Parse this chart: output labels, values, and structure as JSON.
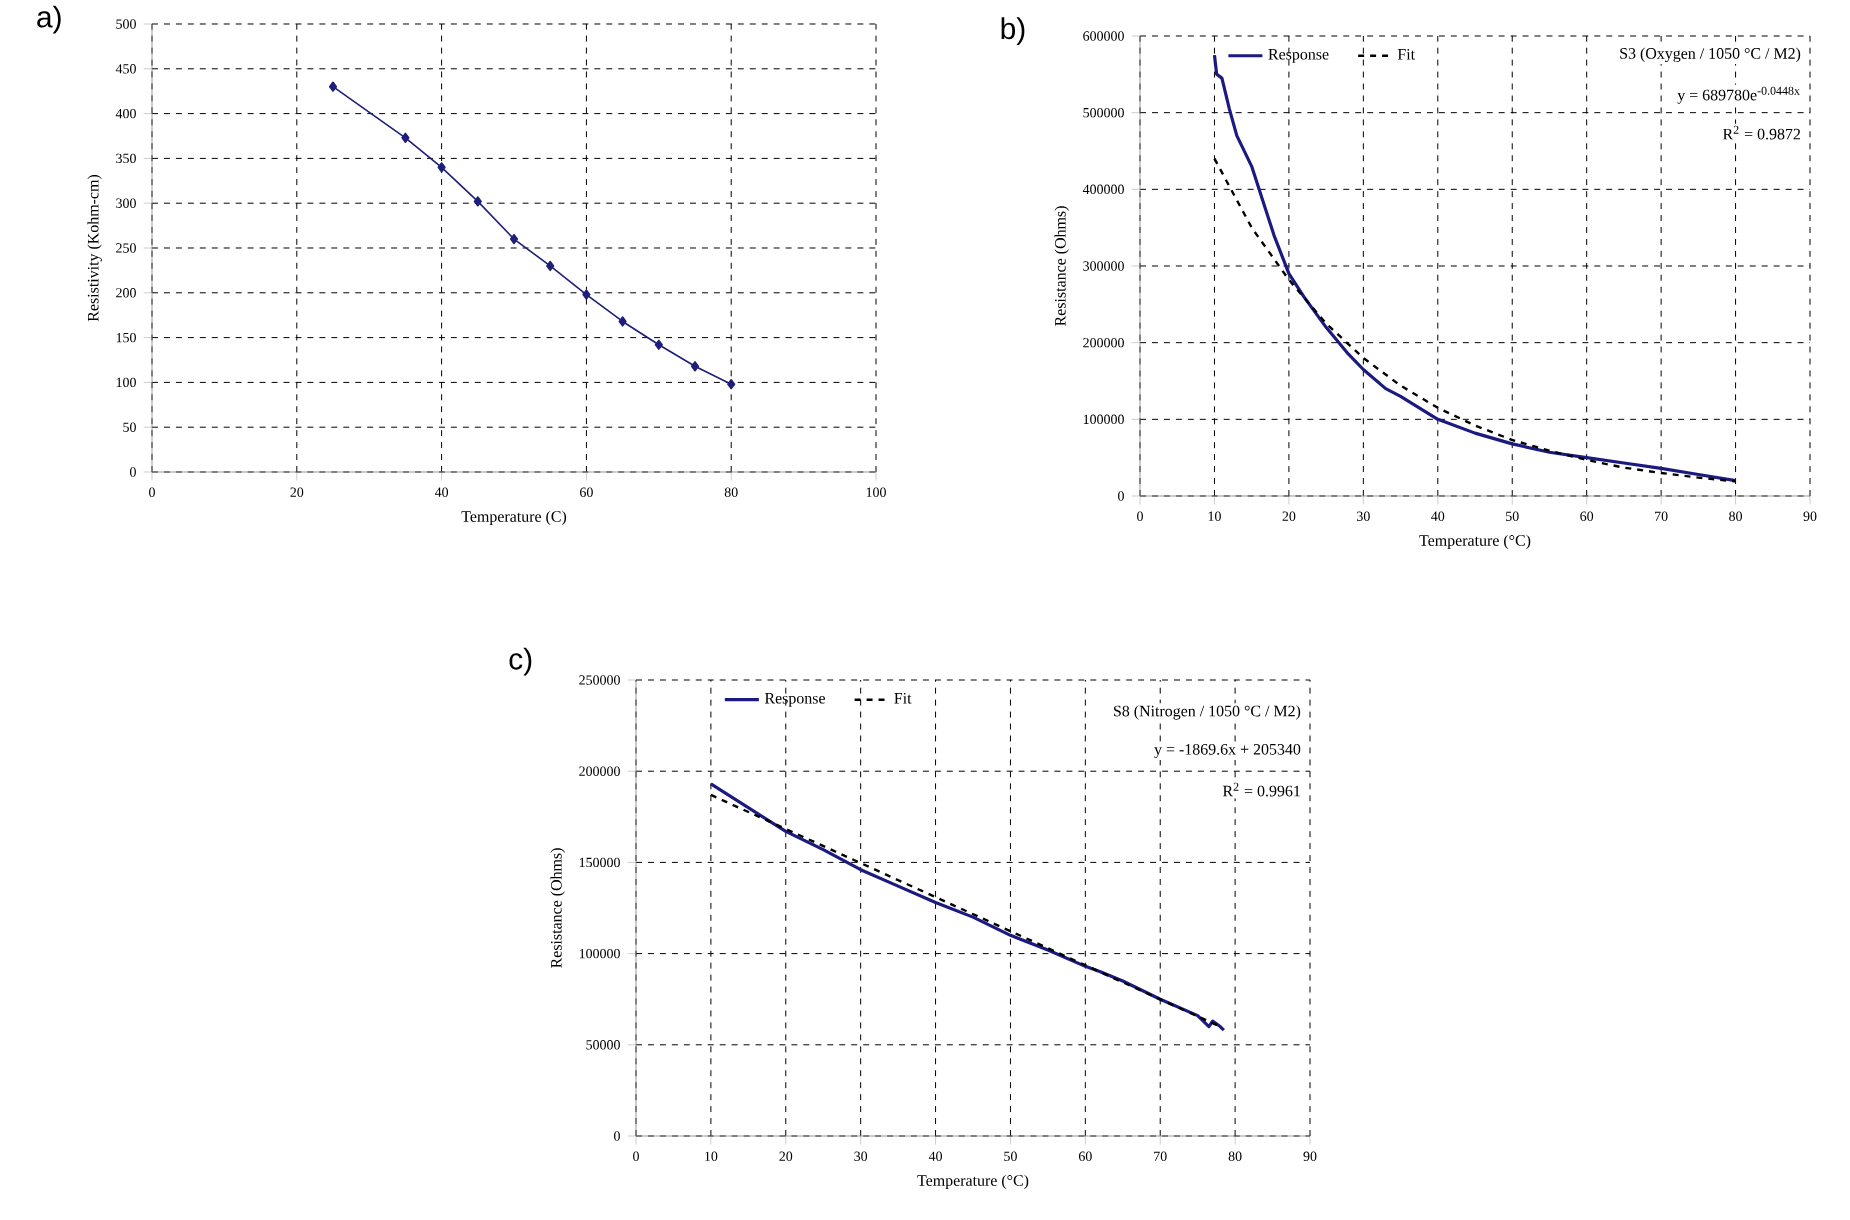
{
  "chart_data": [
    {
      "type": "line",
      "title": "a)",
      "xlabel": "Temperature  (C)",
      "ylabel": "Resistivity (Kohm-cm)",
      "x": [
        25,
        35,
        40,
        45,
        50,
        55,
        60,
        65,
        70,
        75,
        80
      ],
      "values": [
        430,
        373,
        340,
        302,
        260,
        230,
        198,
        168,
        142,
        118,
        98
      ],
      "color": "#1f1f7a",
      "marker": "diamond",
      "grid": true,
      "xlim": [
        0,
        100
      ],
      "xticks": [
        0,
        20,
        40,
        60,
        80,
        100
      ],
      "ylim": [
        0,
        500
      ],
      "yticks": [
        0,
        50,
        100,
        150,
        200,
        250,
        300,
        350,
        400,
        450,
        500
      ]
    },
    {
      "type": "line",
      "title": "b)",
      "xlabel": "Temperature (°C)",
      "ylabel": "Resistance (Ohms)",
      "legend": "top left",
      "grid": true,
      "xlim": [
        0,
        90
      ],
      "xticks": [
        0,
        10,
        20,
        30,
        40,
        50,
        60,
        70,
        80,
        90
      ],
      "ylim": [
        0,
        600000
      ],
      "yticks": [
        0,
        100000,
        200000,
        300000,
        400000,
        500000,
        600000
      ],
      "annotations": [
        "S3 (Oxygen / 1050 °C / M2)",
        "y = 689780e$^{-0.0448x}$",
        "R$^{2}$ = 0.9872"
      ],
      "series": [
        {
          "name": "Response",
          "color": "#1a1a80",
          "x": [
            10,
            10.3,
            11,
            12,
            13,
            15,
            16,
            18,
            20,
            22,
            25,
            28,
            30,
            33,
            35,
            40,
            45,
            50,
            55,
            60,
            65,
            70,
            75,
            80
          ],
          "values": [
            575000,
            550000,
            545000,
            505000,
            470000,
            430000,
            400000,
            340000,
            290000,
            260000,
            220000,
            185000,
            165000,
            140000,
            130000,
            100000,
            82000,
            68000,
            57000,
            50000,
            43000,
            36000,
            28000,
            20000
          ]
        },
        {
          "name": "Fit",
          "color": "#000000",
          "line_style": "dashed",
          "x": [
            10,
            15,
            20,
            25,
            30,
            35,
            40,
            45,
            50,
            55,
            60,
            65,
            70,
            75,
            80
          ],
          "values": [
            440000,
            350000,
            282000,
            225000,
            180000,
            144000,
            115000,
            92000,
            73000,
            59000,
            47000,
            37000,
            30000,
            24000,
            19000
          ]
        }
      ]
    },
    {
      "type": "line",
      "title": "c)",
      "xlabel": "Temperature (°C)",
      "ylabel": "Resistance (Ohms)",
      "legend": "top left",
      "grid": true,
      "xlim": [
        0,
        90
      ],
      "xticks": [
        0,
        10,
        20,
        30,
        40,
        50,
        60,
        70,
        80,
        90
      ],
      "ylim": [
        0,
        250000
      ],
      "yticks": [
        0,
        50000,
        100000,
        150000,
        200000,
        250000
      ],
      "annotations": [
        "S8 (Nitrogen / 1050 °C / M2)",
        "y = -1869.6x + 205340",
        "R$^{2}$ = 0.9961"
      ],
      "series": [
        {
          "name": "Response",
          "color": "#1a1a80",
          "x": [
            10,
            15,
            20,
            25,
            30,
            35,
            40,
            45,
            50,
            55,
            60,
            62,
            65,
            70,
            75,
            76.5,
            77,
            78,
            78.5
          ],
          "values": [
            193000,
            180000,
            167000,
            157000,
            146000,
            137000,
            128000,
            120000,
            110000,
            102000,
            93000,
            90000,
            85000,
            75000,
            66000,
            60000,
            63000,
            60000,
            58000
          ]
        },
        {
          "name": "Fit",
          "color": "#000000",
          "line_style": "dashed",
          "x": [
            10,
            78
          ],
          "values": [
            187000,
            60000
          ]
        }
      ]
    }
  ]
}
